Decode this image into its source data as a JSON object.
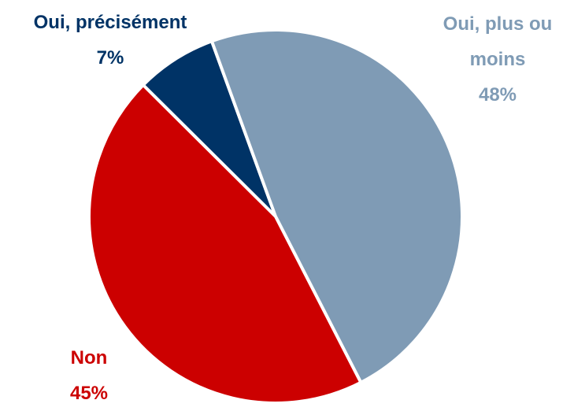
{
  "chart_data": {
    "type": "pie",
    "categories": [
      "Oui, précisément",
      "Oui, plus ou moins",
      "Non"
    ],
    "values": [
      7,
      48,
      45
    ],
    "value_labels": [
      "7%",
      "48%",
      "45%"
    ],
    "colors": [
      "#003366",
      "#7f9bb5",
      "#cc0000"
    ]
  }
}
